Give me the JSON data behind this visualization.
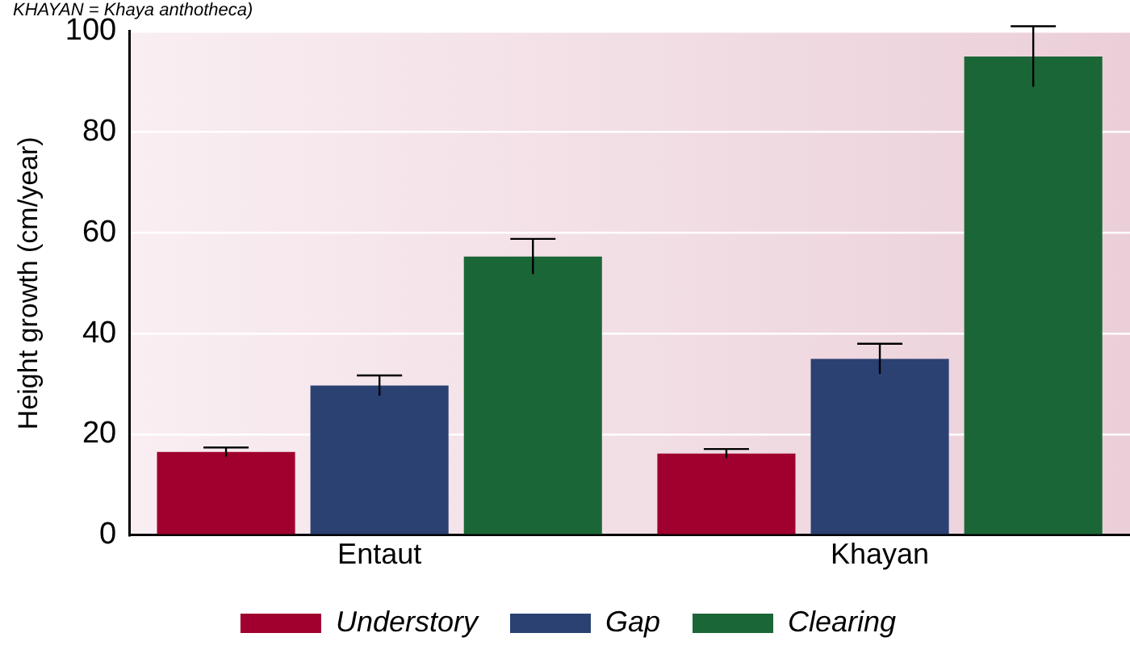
{
  "chart_data": {
    "type": "bar",
    "ylabel": "Height growth (cm/year)",
    "annotations": [
      "KHAYAN = Khaya anthotheca)"
    ],
    "categories": [
      "Entaut",
      "Khayan"
    ],
    "series": [
      {
        "name": "Understory",
        "color": "#a0002e",
        "values": [
          16.5,
          16.2
        ],
        "errors": [
          0.9,
          0.9
        ]
      },
      {
        "name": "Gap",
        "color": "#2a4172",
        "values": [
          29.7,
          35
        ],
        "errors": [
          2,
          3
        ]
      },
      {
        "name": "Clearing",
        "color": "#1b6636",
        "values": [
          55.3,
          95
        ],
        "errors": [
          3.5,
          6
        ]
      }
    ],
    "ylim": [
      0,
      100
    ],
    "yticks": [
      0,
      20,
      40,
      60,
      80,
      100
    ],
    "grid": "y",
    "legend": "bottom"
  }
}
